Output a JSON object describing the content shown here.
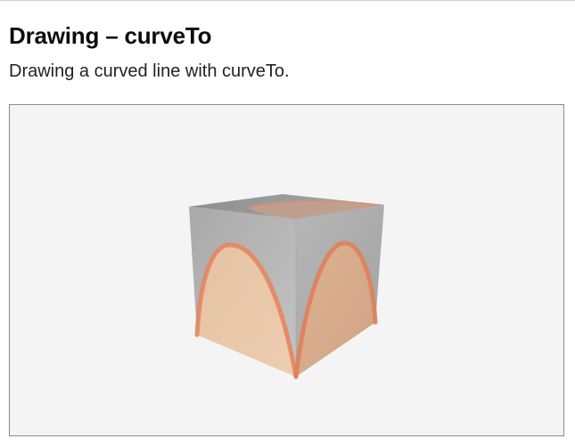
{
  "page": {
    "title": "Drawing – curveTo",
    "subtitle": "Drawing a curved line with curveTo."
  },
  "colors": {
    "viewport_background": "#f4f4f4",
    "viewport_border": "#8a8a8a",
    "cube_top": "#a3a3a3",
    "cube_left": "#bcbcbc",
    "cube_right": "#aeaeae",
    "curve_fill": "#e8c2a1",
    "curve_stroke": "#e4865f"
  }
}
